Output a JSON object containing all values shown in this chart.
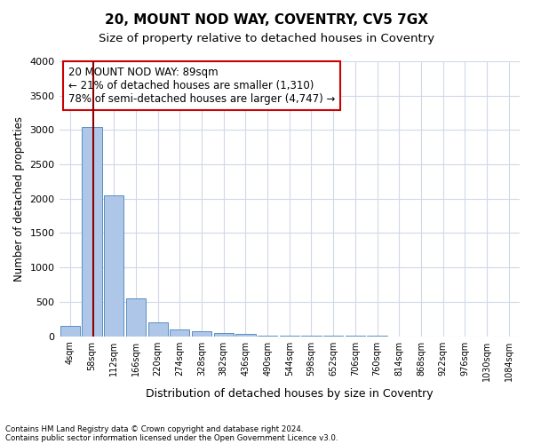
{
  "title": "20, MOUNT NOD WAY, COVENTRY, CV5 7GX",
  "subtitle": "Size of property relative to detached houses in Coventry",
  "xlabel": "Distribution of detached houses by size in Coventry",
  "ylabel": "Number of detached properties",
  "footnote1": "Contains HM Land Registry data © Crown copyright and database right 2024.",
  "footnote2": "Contains public sector information licensed under the Open Government Licence v3.0.",
  "bin_labels": [
    "4sqm",
    "58sqm",
    "112sqm",
    "166sqm",
    "220sqm",
    "274sqm",
    "328sqm",
    "382sqm",
    "436sqm",
    "490sqm",
    "544sqm",
    "598sqm",
    "652sqm",
    "706sqm",
    "760sqm",
    "814sqm",
    "868sqm",
    "922sqm",
    "976sqm",
    "1030sqm",
    "1084sqm"
  ],
  "bar_values": [
    150,
    3050,
    2050,
    550,
    200,
    100,
    70,
    50,
    30,
    10,
    5,
    3,
    2,
    1,
    1,
    0,
    0,
    0,
    0,
    0,
    0
  ],
  "bar_color": "#aec6e8",
  "bar_edge_color": "#5a8fc0",
  "grid_color": "#d0d8e8",
  "vline_color": "#8b0000",
  "ylim": [
    0,
    4000
  ],
  "annotation_text": "20 MOUNT NOD WAY: 89sqm\n← 21% of detached houses are smaller (1,310)\n78% of semi-detached houses are larger (4,747) →",
  "annotation_box_color": "#cc0000",
  "annotation_text_fontsize": 8.5,
  "title_fontsize": 11,
  "subtitle_fontsize": 9.5,
  "yticks": [
    0,
    500,
    1000,
    1500,
    2000,
    2500,
    3000,
    3500,
    4000
  ]
}
